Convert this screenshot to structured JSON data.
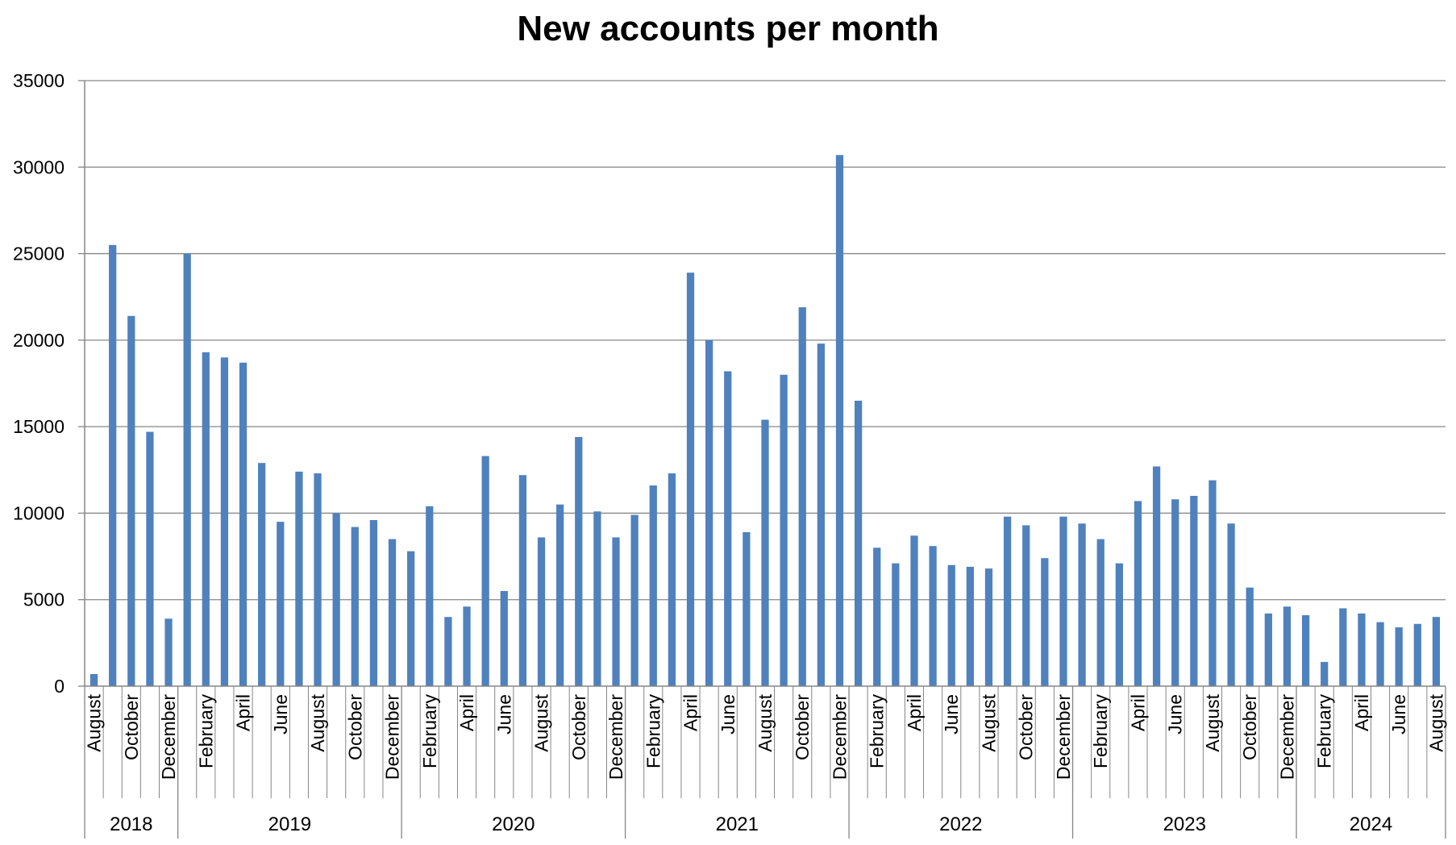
{
  "chart_data": {
    "type": "bar",
    "title": "New accounts per month",
    "xlabel": "",
    "ylabel": "",
    "ylim": [
      0,
      35000
    ],
    "y_ticks": [
      "0",
      "5000",
      "10000",
      "15000",
      "20000",
      "25000",
      "30000",
      "35000"
    ],
    "grid": true,
    "legend": "none",
    "bar_color": "#4F81BD",
    "grid_color": "#868686",
    "years": [
      {
        "label": "2018",
        "months": 5
      },
      {
        "label": "2019",
        "months": 12
      },
      {
        "label": "2020",
        "months": 12
      },
      {
        "label": "2021",
        "months": 12
      },
      {
        "label": "2022",
        "months": 12
      },
      {
        "label": "2023",
        "months": 12
      },
      {
        "label": "2024",
        "months": 8
      }
    ],
    "categories": [
      "August",
      "",
      "October",
      "",
      "December",
      "",
      "February",
      "",
      "April",
      "",
      "June",
      "",
      "August",
      "",
      "October",
      "",
      "December",
      "",
      "February",
      "",
      "April",
      "",
      "June",
      "",
      "August",
      "",
      "October",
      "",
      "December",
      "",
      "February",
      "",
      "April",
      "",
      "June",
      "",
      "August",
      "",
      "October",
      "",
      "December",
      "",
      "February",
      "",
      "April",
      "",
      "June",
      "",
      "August",
      "",
      "October",
      "",
      "December",
      "",
      "February",
      "",
      "April",
      "",
      "June",
      "",
      "August",
      "",
      "October",
      "",
      "December",
      "",
      "February",
      "",
      "April",
      "",
      "June",
      "",
      "August"
    ],
    "values": [
      700,
      25500,
      21400,
      14700,
      3900,
      25000,
      19300,
      19000,
      18700,
      12900,
      9500,
      12400,
      12300,
      10000,
      9200,
      9600,
      8500,
      7800,
      10400,
      4000,
      4600,
      13300,
      5500,
      12200,
      8600,
      10500,
      14400,
      10100,
      8600,
      9900,
      11600,
      12300,
      23900,
      20000,
      18200,
      8900,
      15400,
      18000,
      21900,
      19800,
      30700,
      16500,
      8000,
      7100,
      8700,
      8100,
      7000,
      6900,
      6800,
      9800,
      9300,
      7400,
      9800,
      9400,
      8500,
      7100,
      10700,
      12700,
      10800,
      11000,
      11900,
      9400,
      5700,
      4200,
      4600,
      4100,
      1400,
      4500,
      4200,
      3700,
      3400,
      3600,
      4000
    ]
  }
}
